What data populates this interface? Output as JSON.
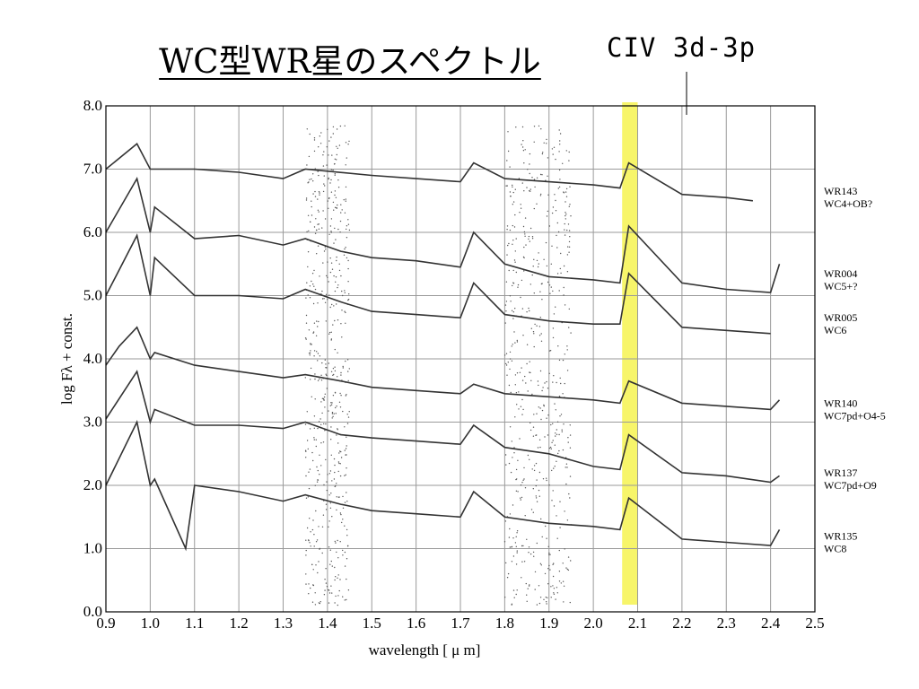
{
  "slide": {
    "title": "WC型WR星のスペクトル",
    "annotation": "CIV 3d-3p"
  },
  "chart_data": {
    "type": "line",
    "title": "",
    "xlabel": "wavelength [ μ m]",
    "ylabel": "log Fλ + const.",
    "xlim": [
      0.9,
      2.5
    ],
    "ylim": [
      0.0,
      8.0
    ],
    "xticks": [
      "0.9",
      "1.0",
      "1.1",
      "1.2",
      "1.3",
      "1.4",
      "1.5",
      "1.6",
      "1.7",
      "1.8",
      "1.9",
      "2.0",
      "2.1",
      "2.2",
      "2.3",
      "2.4",
      "2.5"
    ],
    "yticks": [
      "0.0",
      "1.0",
      "2.0",
      "3.0",
      "4.0",
      "5.0",
      "6.0",
      "7.0",
      "8.0"
    ],
    "grid": true,
    "highlight": {
      "x0": 2.065,
      "x1": 2.1,
      "color": "#f7f56a",
      "label": "CIV 3d-3p"
    },
    "noise_bands": [
      [
        1.35,
        1.45
      ],
      [
        1.8,
        1.95
      ]
    ],
    "series": [
      {
        "name": "WR143",
        "type_label": "WC4+OB?",
        "x": [
          0.9,
          0.97,
          1.0,
          1.1,
          1.2,
          1.3,
          1.35,
          1.5,
          1.6,
          1.7,
          1.73,
          1.8,
          1.9,
          2.0,
          2.06,
          2.08,
          2.2,
          2.3,
          2.36
        ],
        "y": [
          7.0,
          7.4,
          7.0,
          7.0,
          6.95,
          6.85,
          7.0,
          6.9,
          6.85,
          6.8,
          7.1,
          6.85,
          6.8,
          6.75,
          6.7,
          7.1,
          6.6,
          6.55,
          6.5
        ]
      },
      {
        "name": "WR004",
        "type_label": "WC5+?",
        "x": [
          0.9,
          0.97,
          1.0,
          1.01,
          1.1,
          1.2,
          1.3,
          1.35,
          1.43,
          1.5,
          1.6,
          1.7,
          1.73,
          1.8,
          1.9,
          2.0,
          2.06,
          2.08,
          2.2,
          2.3,
          2.4,
          2.42
        ],
        "y": [
          6.0,
          6.85,
          6.0,
          6.4,
          5.9,
          5.95,
          5.8,
          5.9,
          5.7,
          5.6,
          5.55,
          5.45,
          6.0,
          5.5,
          5.3,
          5.25,
          5.2,
          6.1,
          5.2,
          5.1,
          5.05,
          5.5
        ]
      },
      {
        "name": "WR005",
        "type_label": "WC6",
        "x": [
          0.9,
          0.97,
          1.0,
          1.01,
          1.1,
          1.2,
          1.3,
          1.35,
          1.43,
          1.5,
          1.6,
          1.7,
          1.73,
          1.8,
          1.9,
          2.0,
          2.06,
          2.08,
          2.2,
          2.3,
          2.4
        ],
        "y": [
          5.0,
          5.95,
          5.0,
          5.6,
          5.0,
          5.0,
          4.95,
          5.1,
          4.9,
          4.75,
          4.7,
          4.65,
          5.2,
          4.7,
          4.6,
          4.55,
          4.55,
          5.35,
          4.5,
          4.45,
          4.4
        ]
      },
      {
        "name": "WR140",
        "type_label": "WC7pd+O4-5",
        "x": [
          0.9,
          0.93,
          0.97,
          1.0,
          1.01,
          1.1,
          1.2,
          1.3,
          1.35,
          1.43,
          1.5,
          1.6,
          1.7,
          1.73,
          1.8,
          1.9,
          2.0,
          2.06,
          2.08,
          2.2,
          2.3,
          2.4,
          2.42
        ],
        "y": [
          3.9,
          4.2,
          4.5,
          4.0,
          4.1,
          3.9,
          3.8,
          3.7,
          3.75,
          3.65,
          3.55,
          3.5,
          3.45,
          3.6,
          3.45,
          3.4,
          3.35,
          3.3,
          3.65,
          3.3,
          3.25,
          3.2,
          3.35
        ]
      },
      {
        "name": "WR137",
        "type_label": "WC7pd+O9",
        "x": [
          0.9,
          0.97,
          1.0,
          1.01,
          1.1,
          1.2,
          1.3,
          1.35,
          1.43,
          1.5,
          1.6,
          1.7,
          1.73,
          1.8,
          1.9,
          2.0,
          2.06,
          2.08,
          2.2,
          2.3,
          2.4,
          2.42
        ],
        "y": [
          3.05,
          3.8,
          3.0,
          3.2,
          2.95,
          2.95,
          2.9,
          3.0,
          2.8,
          2.75,
          2.7,
          2.65,
          2.95,
          2.6,
          2.5,
          2.3,
          2.25,
          2.8,
          2.2,
          2.15,
          2.05,
          2.15
        ]
      },
      {
        "name": "WR135",
        "type_label": "WC8",
        "x": [
          0.9,
          0.97,
          1.0,
          1.01,
          1.08,
          1.1,
          1.2,
          1.3,
          1.35,
          1.43,
          1.5,
          1.6,
          1.7,
          1.73,
          1.8,
          1.9,
          2.0,
          2.06,
          2.08,
          2.2,
          2.3,
          2.4,
          2.42
        ],
        "y": [
          2.0,
          3.0,
          2.0,
          2.1,
          1.0,
          2.0,
          1.9,
          1.75,
          1.85,
          1.7,
          1.6,
          1.55,
          1.5,
          1.9,
          1.5,
          1.4,
          1.35,
          1.3,
          1.8,
          1.15,
          1.1,
          1.05,
          1.3
        ]
      }
    ]
  }
}
